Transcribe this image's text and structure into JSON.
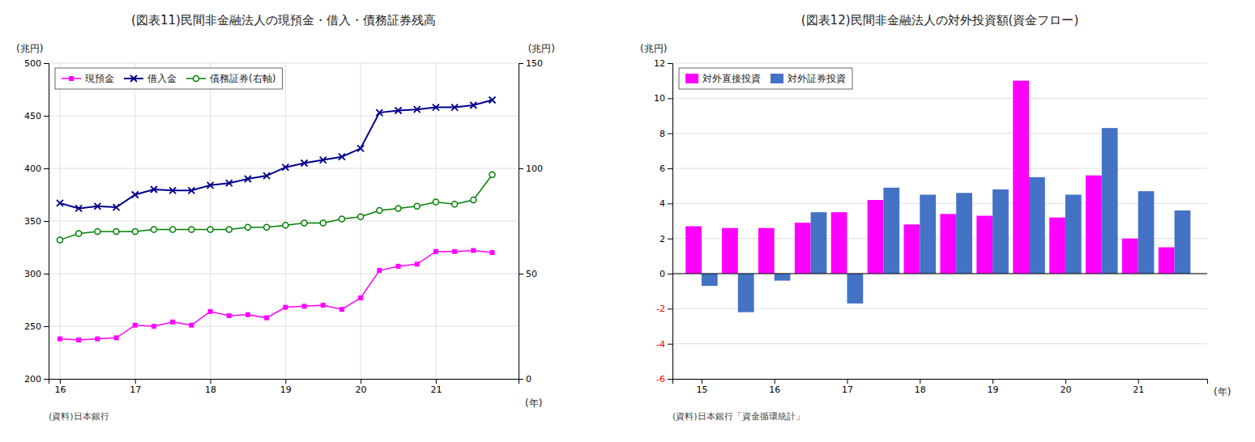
{
  "chart_data": [
    {
      "type": "line",
      "title": "(図表11)民間非金融法人の現預金・借入・債務証券残高",
      "ylabel": "(兆円)",
      "y2label": "(兆円)",
      "xlabel": "(年)",
      "source": "(資料)日本銀行",
      "x": [
        16.0,
        16.25,
        16.5,
        16.75,
        17.0,
        17.25,
        17.5,
        17.75,
        18.0,
        18.25,
        18.5,
        18.75,
        19.0,
        19.25,
        19.5,
        19.75,
        20.0,
        20.25,
        20.5,
        20.75,
        21.0,
        21.25,
        21.5,
        21.75
      ],
      "xlim": [
        15.85,
        22.1
      ],
      "xticks": [
        16,
        17,
        18,
        19,
        20,
        21
      ],
      "ylim": [
        200,
        500
      ],
      "yticks": [
        200,
        250,
        300,
        350,
        400,
        450,
        500
      ],
      "y2lim": [
        0,
        150
      ],
      "y2ticks": [
        0,
        50,
        100,
        150
      ],
      "grid": true,
      "legend": "upper left",
      "series": [
        {
          "name": "現預金",
          "color": "#FF00FF",
          "marker": "square",
          "values": [
            238,
            237,
            238,
            239,
            251,
            250,
            254,
            251,
            264,
            260,
            261,
            258,
            268,
            269,
            270,
            266,
            277,
            303,
            307,
            309,
            321,
            321,
            322,
            320
          ]
        },
        {
          "name": "借入金",
          "color": "#00008B",
          "marker": "x",
          "values": [
            367,
            362,
            364,
            363,
            375,
            380,
            379,
            379,
            384,
            386,
            390,
            393,
            401,
            405,
            408,
            411,
            419,
            453,
            455,
            456,
            458,
            458,
            460,
            465
          ]
        },
        {
          "name": "債務証券(右軸)",
          "color": "#008000",
          "marker": "circle",
          "axis": "y2",
          "values": [
            66,
            69,
            70,
            70,
            70,
            71,
            71,
            71,
            71,
            71,
            72,
            72,
            73,
            74,
            74,
            76,
            77,
            80,
            81,
            82,
            84,
            83,
            85,
            97
          ]
        }
      ]
    },
    {
      "type": "bar",
      "title": "(図表12)民間非金融法人の対外投資額(資金フロー)",
      "ylabel": "(兆円)",
      "xlabel": "(年)",
      "source": "(資料)日本銀行「資金循環統計」",
      "x": [
        15.0,
        15.5,
        16.0,
        16.5,
        17.0,
        17.5,
        18.0,
        18.5,
        19.0,
        19.5,
        20.0,
        20.5,
        21.0,
        21.5
      ],
      "xlim": [
        14.6,
        21.95
      ],
      "xticks": [
        15,
        16,
        17,
        18,
        19,
        20,
        21
      ],
      "ylim": [
        -6,
        12
      ],
      "yticks": [
        -6,
        -4,
        -2,
        0,
        2,
        4,
        6,
        8,
        10,
        12
      ],
      "grid": "y",
      "legend": "upper left",
      "series": [
        {
          "name": "対外直接投資",
          "color": "#FF00FF",
          "values": [
            2.7,
            2.6,
            2.6,
            2.9,
            3.5,
            4.2,
            2.8,
            3.4,
            3.3,
            11.0,
            3.2,
            5.6,
            2.0,
            1.5
          ]
        },
        {
          "name": "対外証券投資",
          "color": "#4472C4",
          "values": [
            -0.7,
            -2.2,
            -0.4,
            3.5,
            -1.7,
            4.9,
            4.5,
            4.6,
            4.8,
            5.5,
            4.5,
            8.3,
            4.7,
            3.6
          ]
        }
      ]
    }
  ]
}
